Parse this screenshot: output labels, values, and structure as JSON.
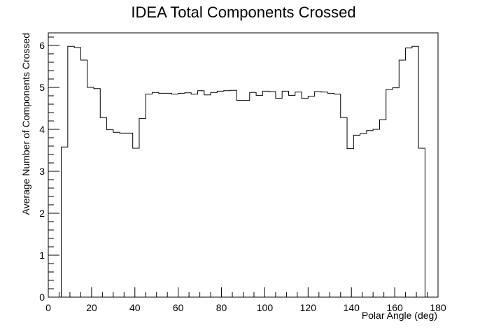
{
  "chart_data": {
    "type": "histogram",
    "title": "IDEA Total Components Crossed",
    "xlabel": "Polar Angle (deg)",
    "ylabel": "Average Number of Components Crossed",
    "xlim": [
      0,
      180
    ],
    "ylim": [
      0,
      6.3
    ],
    "xticks": [
      0,
      20,
      40,
      60,
      80,
      100,
      120,
      140,
      160,
      180
    ],
    "yticks": [
      0,
      1,
      2,
      3,
      4,
      5,
      6
    ],
    "grid": false,
    "legend": "none",
    "bin_width": 3,
    "bins": [
      [
        6,
        9,
        3.58
      ],
      [
        9,
        12,
        5.98
      ],
      [
        12,
        15,
        5.95
      ],
      [
        15,
        18,
        5.65
      ],
      [
        18,
        21,
        5.0
      ],
      [
        21,
        24,
        4.97
      ],
      [
        24,
        27,
        4.28
      ],
      [
        27,
        30,
        3.99
      ],
      [
        30,
        33,
        3.93
      ],
      [
        33,
        36,
        3.91
      ],
      [
        36,
        39,
        3.91
      ],
      [
        39,
        42,
        3.55
      ],
      [
        42,
        45,
        4.26
      ],
      [
        45,
        48,
        4.84
      ],
      [
        48,
        51,
        4.88
      ],
      [
        51,
        54,
        4.86
      ],
      [
        54,
        57,
        4.86
      ],
      [
        57,
        60,
        4.84
      ],
      [
        60,
        63,
        4.86
      ],
      [
        63,
        66,
        4.87
      ],
      [
        66,
        69,
        4.84
      ],
      [
        69,
        72,
        4.92
      ],
      [
        72,
        75,
        4.82
      ],
      [
        75,
        78,
        4.88
      ],
      [
        78,
        81,
        4.91
      ],
      [
        81,
        84,
        4.92
      ],
      [
        84,
        87,
        4.93
      ],
      [
        87,
        90,
        4.69
      ],
      [
        90,
        93,
        4.69
      ],
      [
        93,
        96,
        4.88
      ],
      [
        96,
        99,
        4.81
      ],
      [
        99,
        102,
        4.91
      ],
      [
        102,
        105,
        4.9
      ],
      [
        105,
        108,
        4.74
      ],
      [
        108,
        111,
        4.91
      ],
      [
        111,
        114,
        4.81
      ],
      [
        114,
        117,
        4.89
      ],
      [
        117,
        120,
        4.74
      ],
      [
        120,
        123,
        4.79
      ],
      [
        123,
        126,
        4.9
      ],
      [
        126,
        129,
        4.89
      ],
      [
        129,
        132,
        4.86
      ],
      [
        132,
        135,
        4.84
      ],
      [
        135,
        138,
        4.28
      ],
      [
        138,
        141,
        3.54
      ],
      [
        141,
        144,
        3.86
      ],
      [
        144,
        147,
        3.9
      ],
      [
        147,
        150,
        3.97
      ],
      [
        150,
        153,
        4.0
      ],
      [
        153,
        156,
        4.23
      ],
      [
        156,
        159,
        4.95
      ],
      [
        159,
        162,
        4.99
      ],
      [
        162,
        165,
        5.65
      ],
      [
        165,
        168,
        5.94
      ],
      [
        168,
        171,
        5.98
      ],
      [
        171,
        174,
        3.55
      ]
    ]
  }
}
